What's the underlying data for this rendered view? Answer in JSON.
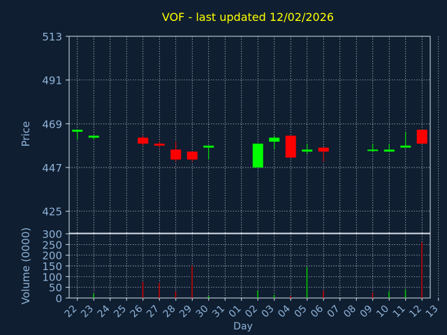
{
  "title": "VOF - last updated 12/02/2026",
  "colors": {
    "background": "#0f1e30",
    "title": "#ffff00",
    "axis_text": "#8fb3d9",
    "axis_line": "#d8e2ee",
    "grid": "#c8d0da",
    "up": "#00ff00",
    "down": "#ff0000",
    "up_volume": "#00cc00",
    "down_volume": "#cc0000"
  },
  "chart_data": [
    {
      "type": "candlestick",
      "ylabel": "Price",
      "ylim": [
        414,
        513
      ],
      "yticks": [
        513,
        491,
        469,
        447,
        425
      ],
      "grid": true,
      "candles": [
        {
          "day": "22",
          "open": 465,
          "high": 466,
          "low": 461,
          "close": 466
        },
        {
          "day": "23",
          "open": 462,
          "high": 463,
          "low": 461,
          "close": 463
        },
        {
          "day": "26",
          "open": 462,
          "high": 463,
          "low": 458,
          "close": 459
        },
        {
          "day": "27",
          "open": 459,
          "high": 460,
          "low": 457,
          "close": 458
        },
        {
          "day": "28",
          "open": 456,
          "high": 460,
          "low": 450,
          "close": 451
        },
        {
          "day": "29",
          "open": 455,
          "high": 455,
          "low": 450,
          "close": 451
        },
        {
          "day": "30",
          "open": 457,
          "high": 458,
          "low": 451,
          "close": 458
        },
        {
          "day": "02",
          "open": 447,
          "high": 459,
          "low": 447,
          "close": 459
        },
        {
          "day": "03",
          "open": 460,
          "high": 463,
          "low": 456,
          "close": 462
        },
        {
          "day": "04",
          "open": 463,
          "high": 463,
          "low": 452,
          "close": 452
        },
        {
          "day": "05",
          "open": 455,
          "high": 459,
          "low": 454,
          "close": 456
        },
        {
          "day": "06",
          "open": 457,
          "high": 457,
          "low": 450,
          "close": 455
        },
        {
          "day": "09",
          "open": 456,
          "high": 459,
          "low": 455,
          "close": 456
        },
        {
          "day": "10",
          "open": 455,
          "high": 459,
          "low": 455,
          "close": 456
        },
        {
          "day": "11",
          "open": 457,
          "high": 465,
          "low": 457,
          "close": 458
        },
        {
          "day": "12",
          "open": 466,
          "high": 466,
          "low": 459,
          "close": 459
        }
      ]
    },
    {
      "type": "bar",
      "xlabel": "Day",
      "ylabel": "Volume (0000)",
      "ylim": [
        0,
        300
      ],
      "yticks": [
        300,
        250,
        200,
        150,
        100,
        50,
        0
      ],
      "grid": true,
      "volumes": [
        {
          "day": "22",
          "value": 0,
          "direction": "up"
        },
        {
          "day": "23",
          "value": 20,
          "direction": "up"
        },
        {
          "day": "26",
          "value": 75,
          "direction": "down"
        },
        {
          "day": "27",
          "value": 70,
          "direction": "down"
        },
        {
          "day": "28",
          "value": 30,
          "direction": "down"
        },
        {
          "day": "29",
          "value": 150,
          "direction": "down"
        },
        {
          "day": "30",
          "value": 10,
          "direction": "up"
        },
        {
          "day": "02",
          "value": 35,
          "direction": "up"
        },
        {
          "day": "03",
          "value": 15,
          "direction": "up"
        },
        {
          "day": "04",
          "value": 10,
          "direction": "down"
        },
        {
          "day": "05",
          "value": 145,
          "direction": "up"
        },
        {
          "day": "06",
          "value": 35,
          "direction": "down"
        },
        {
          "day": "09",
          "value": 25,
          "direction": "down"
        },
        {
          "day": "10",
          "value": 30,
          "direction": "up"
        },
        {
          "day": "11",
          "value": 40,
          "direction": "up"
        },
        {
          "day": "12",
          "value": 260,
          "direction": "down"
        }
      ]
    }
  ],
  "x_axis": {
    "labels": [
      "22",
      "23",
      "24",
      "25",
      "26",
      "27",
      "28",
      "29",
      "30",
      "31",
      "01",
      "02",
      "03",
      "04",
      "05",
      "06",
      "07",
      "08",
      "09",
      "10",
      "11",
      "12",
      "13"
    ]
  }
}
